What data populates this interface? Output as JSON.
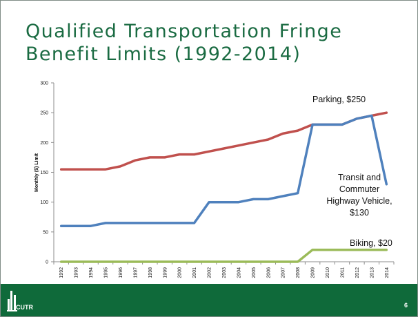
{
  "slide": {
    "title_line1": "Qualified Transportation Fringe",
    "title_line2": "Benefit Limits (1992-2014)",
    "logo_text": "CUTR",
    "page_number": "6"
  },
  "colors": {
    "title": "#1a6b42",
    "parking": "#c0504d",
    "transit": "#4f81bd",
    "biking": "#9bbb59",
    "footer": "#0f6a3a"
  },
  "chart_data": {
    "type": "line",
    "title": "",
    "xlabel": "",
    "ylabel": "Monthly ($) Limit",
    "ylim": [
      0,
      300
    ],
    "yticks": [
      "0",
      "50",
      "100",
      "150",
      "200",
      "250",
      "300"
    ],
    "grid": false,
    "categories": [
      "1992",
      "1993",
      "1994",
      "1995",
      "1996",
      "1997",
      "1998",
      "1999",
      "2000",
      "2001",
      "2002",
      "2003",
      "2004",
      "2005",
      "2006",
      "2007",
      "2008",
      "2009",
      "2010",
      "2011",
      "2012",
      "2013",
      "2014"
    ],
    "series": [
      {
        "name": "Parking",
        "values": [
          155,
          155,
          155,
          155,
          160,
          170,
          175,
          175,
          180,
          180,
          185,
          190,
          195,
          200,
          205,
          215,
          220,
          230,
          230,
          230,
          240,
          245,
          250
        ]
      },
      {
        "name": "Transit and Commuter Highway Vehicle",
        "values": [
          60,
          60,
          60,
          65,
          65,
          65,
          65,
          65,
          65,
          65,
          100,
          100,
          100,
          105,
          105,
          110,
          115,
          230,
          230,
          230,
          240,
          245,
          130
        ]
      },
      {
        "name": "Biking",
        "values": [
          0,
          0,
          0,
          0,
          0,
          0,
          0,
          0,
          0,
          0,
          0,
          0,
          0,
          0,
          0,
          0,
          0,
          20,
          20,
          20,
          20,
          20,
          20
        ]
      }
    ],
    "annotations": {
      "parking": "Parking,  $250",
      "transit_line1": "Transit and",
      "transit_line2": "Commuter",
      "transit_line3": "Highway Vehicle,",
      "transit_line4": "$130",
      "biking": "Biking, $20"
    }
  }
}
